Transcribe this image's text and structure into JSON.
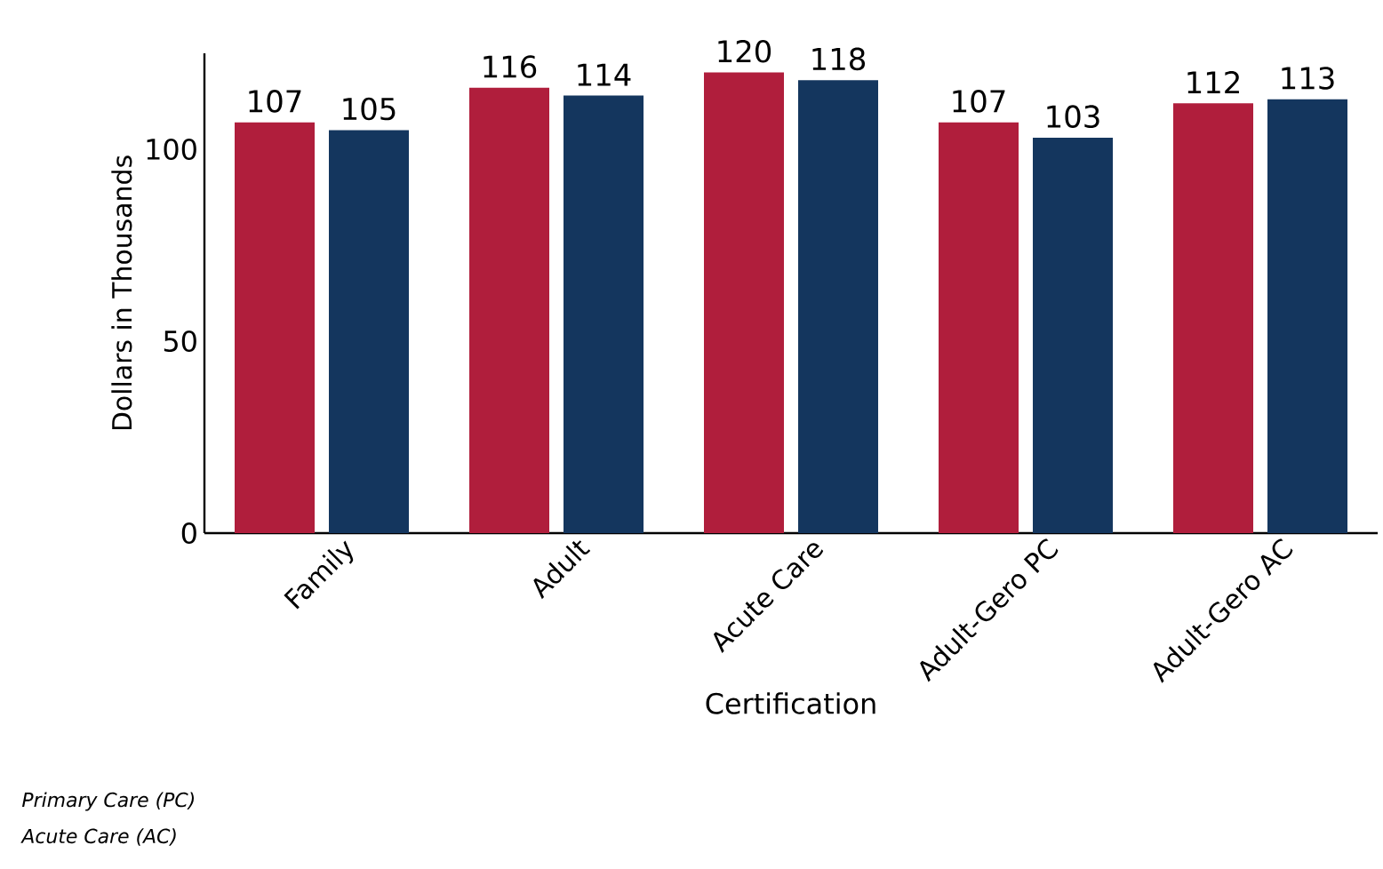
{
  "chart_data": {
    "type": "bar",
    "xlabel": "Certification",
    "ylabel": "Dollars in Thousands",
    "categories": [
      "Family",
      "Adult",
      "Acute Care",
      "Adult-Gero PC",
      "Adult-Gero AC"
    ],
    "series": [
      {
        "color": "#b01e3c",
        "values": [
          107,
          116,
          120,
          107,
          112
        ]
      },
      {
        "color": "#14365e",
        "values": [
          105,
          114,
          118,
          103,
          113
        ]
      }
    ],
    "ylim": [
      0,
      125
    ],
    "yticks": [
      0,
      50,
      100
    ],
    "data_labels": true,
    "grid": false,
    "annotations": [
      "Primary Care (PC)",
      "Acute Care (AC)"
    ]
  }
}
